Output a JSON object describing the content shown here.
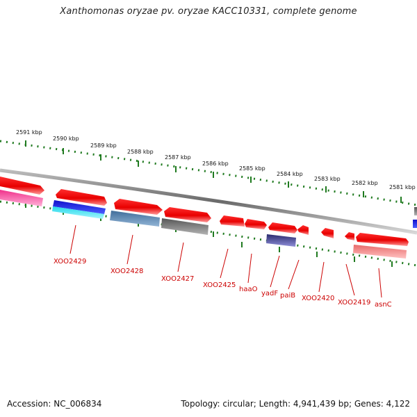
{
  "title": "Xanthomonas oryzae pv. oryzae KACC10331, complete genome",
  "footer": {
    "accession": "Accession: NC_006834",
    "summary": "Topology: circular; Length: 4,941,439 bp; Genes: 4,122"
  },
  "ruler": {
    "labels": [
      "2591 kbp",
      "2590 kbp",
      "2589 kbp",
      "2588 kbp",
      "2587 kbp",
      "2586 kbp",
      "2585 kbp",
      "2584 kbp",
      "2583 kbp",
      "2582 kbp",
      "2581 kbp"
    ]
  },
  "genes": [
    {
      "name": "XOO2429"
    },
    {
      "name": "XOO2428"
    },
    {
      "name": "XOO2427"
    },
    {
      "name": "XOO2425"
    },
    {
      "name": "haaO"
    },
    {
      "name": "yadF"
    },
    {
      "name": "paiB"
    },
    {
      "name": "XOO2420"
    },
    {
      "name": "XOO2419"
    },
    {
      "name": "asnC"
    }
  ],
  "colors": {
    "forward_gene": "#ee1111",
    "label": "#cc0000",
    "tick": "#1f7a1f",
    "backbone": "#888888"
  }
}
